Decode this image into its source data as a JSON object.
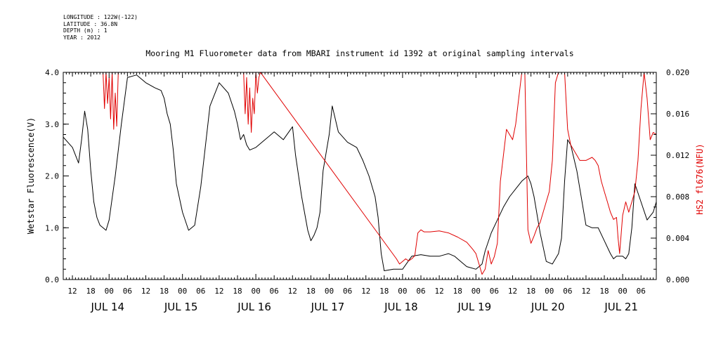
{
  "meta": {
    "longitude": "LONGITUDE : 122W(-122)",
    "latitude": "LATITUDE : 36.8N",
    "depth": "DEPTH (m) : 1",
    "year": "YEAR : 2012"
  },
  "chart_data": {
    "type": "line",
    "title": "Mooring M1 Fluorometer data from MBARI instrument id 1392 at original sampling intervals",
    "ylabel": "Wetstar Fluorescence(V)",
    "y2label": "HS2 fl676(NFU)",
    "xlim": [
      "2012-07-13 09:00",
      "2012-07-21 11:00"
    ],
    "ylim": [
      0,
      4
    ],
    "y2lim": [
      0,
      0.02
    ],
    "yticks": [
      "0.0",
      "1.0",
      "2.0",
      "3.0",
      "4.0"
    ],
    "y2ticks": [
      "0.000",
      "0.004",
      "0.008",
      "0.012",
      "0.016",
      "0.020"
    ],
    "xticks": [
      "12",
      "18",
      "00",
      "06",
      "12",
      "18",
      "00",
      "06",
      "12",
      "18",
      "00",
      "06",
      "12",
      "18",
      "00",
      "06",
      "12",
      "18",
      "00",
      "06",
      "12",
      "18",
      "00",
      "06",
      "12",
      "18",
      "00",
      "06",
      "12",
      "18",
      "00",
      "06"
    ],
    "date_labels": [
      "JUL 14",
      "JUL 15",
      "JUL 16",
      "JUL 17",
      "JUL 18",
      "JUL 19",
      "JUL 20",
      "JUL 21"
    ],
    "grid": false,
    "series": [
      {
        "name": "Wetstar Fluorescence(V)",
        "axis": "left",
        "color": "#000000",
        "x": [
          "2012-07-13 09:00",
          "2012-07-13 12:00",
          "2012-07-13 14:00",
          "2012-07-13 15:00",
          "2012-07-13 16:00",
          "2012-07-13 17:00",
          "2012-07-13 18:00",
          "2012-07-13 19:00",
          "2012-07-13 20:00",
          "2012-07-13 21:00",
          "2012-07-13 22:00",
          "2012-07-13 23:00",
          "2012-07-14 00:00",
          "2012-07-14 02:00",
          "2012-07-14 04:00",
          "2012-07-14 06:00",
          "2012-07-14 09:00",
          "2012-07-14 12:00",
          "2012-07-14 15:00",
          "2012-07-14 17:00",
          "2012-07-14 18:00",
          "2012-07-14 19:00",
          "2012-07-14 20:00",
          "2012-07-14 21:00",
          "2012-07-14 22:00",
          "2012-07-15 00:00",
          "2012-07-15 02:00",
          "2012-07-15 04:00",
          "2012-07-15 06:00",
          "2012-07-15 09:00",
          "2012-07-15 12:00",
          "2012-07-15 15:00",
          "2012-07-15 17:00",
          "2012-07-15 18:00",
          "2012-07-15 19:00",
          "2012-07-15 20:00",
          "2012-07-15 21:00",
          "2012-07-15 22:00",
          "2012-07-16 00:00",
          "2012-07-16 03:00",
          "2012-07-16 06:00",
          "2012-07-16 09:00",
          "2012-07-16 12:00",
          "2012-07-16 13:00",
          "2012-07-16 15:00",
          "2012-07-16 17:00",
          "2012-07-16 18:00",
          "2012-07-16 19:00",
          "2012-07-16 20:00",
          "2012-07-16 21:00",
          "2012-07-16 22:00",
          "2012-07-17 00:00",
          "2012-07-17 01:00",
          "2012-07-17 03:00",
          "2012-07-17 06:00",
          "2012-07-17 09:00",
          "2012-07-17 11:00",
          "2012-07-17 13:00",
          "2012-07-17 15:00",
          "2012-07-17 16:00",
          "2012-07-17 17:00",
          "2012-07-17 18:00",
          "2012-07-17 21:00",
          "2012-07-18 00:00",
          "2012-07-18 03:00",
          "2012-07-18 06:00",
          "2012-07-18 09:00",
          "2012-07-18 12:00",
          "2012-07-18 15:00",
          "2012-07-18 17:00",
          "2012-07-18 18:00",
          "2012-07-18 21:00",
          "2012-07-19 00:00",
          "2012-07-19 01:00",
          "2012-07-19 02:00",
          "2012-07-19 03:00",
          "2012-07-19 05:00",
          "2012-07-19 07:00",
          "2012-07-19 09:00",
          "2012-07-19 11:00",
          "2012-07-19 13:00",
          "2012-07-19 15:00",
          "2012-07-19 16:00",
          "2012-07-19 17:00",
          "2012-07-19 18:00",
          "2012-07-19 19:00",
          "2012-07-19 21:00",
          "2012-07-19 23:00",
          "2012-07-20 01:00",
          "2012-07-20 03:00",
          "2012-07-20 04:00",
          "2012-07-20 05:00",
          "2012-07-20 06:00",
          "2012-07-20 07:00",
          "2012-07-20 09:00",
          "2012-07-20 12:00",
          "2012-07-20 14:00",
          "2012-07-20 15:00",
          "2012-07-20 16:00",
          "2012-07-20 18:00",
          "2012-07-20 20:00",
          "2012-07-20 21:00",
          "2012-07-20 22:00",
          "2012-07-20 23:00",
          "2012-07-21 00:00",
          "2012-07-21 01:00",
          "2012-07-21 02:00",
          "2012-07-21 03:00",
          "2012-07-21 04:00",
          "2012-07-21 06:00",
          "2012-07-21 08:00",
          "2012-07-21 10:00",
          "2012-07-21 11:00"
        ],
        "values": [
          2.75,
          2.55,
          2.25,
          2.7,
          3.25,
          2.9,
          2.1,
          1.5,
          1.2,
          1.05,
          1.0,
          0.95,
          1.15,
          2.0,
          3.0,
          3.9,
          3.95,
          3.8,
          3.7,
          3.65,
          3.5,
          3.2,
          3.0,
          2.5,
          1.85,
          1.3,
          0.95,
          1.05,
          1.8,
          3.35,
          3.8,
          3.6,
          3.25,
          3.0,
          2.7,
          2.8,
          2.6,
          2.5,
          2.55,
          2.7,
          2.85,
          2.7,
          2.95,
          2.4,
          1.6,
          0.95,
          0.75,
          0.85,
          1.0,
          1.3,
          2.1,
          2.8,
          3.35,
          2.85,
          2.65,
          2.55,
          2.3,
          2.0,
          1.6,
          1.2,
          0.5,
          0.17,
          0.2,
          0.2,
          0.45,
          0.48,
          0.45,
          0.45,
          0.5,
          0.45,
          0.4,
          0.25,
          0.2,
          0.25,
          0.3,
          0.55,
          0.9,
          1.15,
          1.4,
          1.6,
          1.75,
          1.9,
          1.95,
          2.0,
          1.85,
          1.6,
          0.9,
          0.35,
          0.3,
          0.5,
          0.8,
          1.9,
          2.7,
          2.6,
          2.1,
          1.05,
          1.0,
          1.0,
          1.0,
          0.75,
          0.5,
          0.4,
          0.45,
          0.45,
          0.45,
          0.4,
          0.5,
          1.0,
          1.85,
          1.5,
          1.15,
          1.3,
          1.5
        ]
      },
      {
        "name": "HS2 fl676(NFU)",
        "axis": "right",
        "color": "#e00000",
        "x": [
          "2012-07-13 22:00",
          "2012-07-13 22:30",
          "2012-07-13 23:00",
          "2012-07-13 23:30",
          "2012-07-14 00:00",
          "2012-07-14 00:30",
          "2012-07-14 01:00",
          "2012-07-14 01:30",
          "2012-07-14 02:00",
          "2012-07-14 02:30",
          "2012-07-14 03:00",
          "2012-07-15 20:00",
          "2012-07-15 20:30",
          "2012-07-15 21:00",
          "2012-07-15 21:30",
          "2012-07-15 22:00",
          "2012-07-15 22:30",
          "2012-07-15 23:00",
          "2012-07-15 23:30",
          "2012-07-16 00:00",
          "2012-07-16 00:30",
          "2012-07-16 01:00",
          "2012-07-16 01:30",
          "2012-07-17 22:00",
          "2012-07-17 23:00",
          "2012-07-18 01:00",
          "2012-07-18 02:00",
          "2012-07-18 03:00",
          "2012-07-18 04:00",
          "2012-07-18 05:00",
          "2012-07-18 06:00",
          "2012-07-18 07:00",
          "2012-07-18 09:00",
          "2012-07-18 12:00",
          "2012-07-18 15:00",
          "2012-07-18 18:00",
          "2012-07-18 21:00",
          "2012-07-18 23:00",
          "2012-07-19 00:00",
          "2012-07-19 01:00",
          "2012-07-19 02:00",
          "2012-07-19 03:00",
          "2012-07-19 04:00",
          "2012-07-19 05:00",
          "2012-07-19 06:00",
          "2012-07-19 07:00",
          "2012-07-19 08:00",
          "2012-07-19 10:00",
          "2012-07-19 12:00",
          "2012-07-19 13:00",
          "2012-07-19 14:00",
          "2012-07-19 15:00",
          "2012-07-19 16:00",
          "2012-07-19 17:00",
          "2012-07-19 18:00",
          "2012-07-19 19:00",
          "2012-07-19 20:00",
          "2012-07-19 21:00",
          "2012-07-19 22:00",
          "2012-07-20 00:00",
          "2012-07-20 01:00",
          "2012-07-20 02:00",
          "2012-07-20 03:00",
          "2012-07-20 04:00",
          "2012-07-20 05:00",
          "2012-07-20 06:00",
          "2012-07-20 07:00",
          "2012-07-20 08:00",
          "2012-07-20 09:00",
          "2012-07-20 10:00",
          "2012-07-20 12:00",
          "2012-07-20 14:00",
          "2012-07-20 15:00",
          "2012-07-20 16:00",
          "2012-07-20 17:00",
          "2012-07-20 18:00",
          "2012-07-20 19:00",
          "2012-07-20 20:00",
          "2012-07-20 21:00",
          "2012-07-20 22:00",
          "2012-07-20 22:30",
          "2012-07-20 23:00",
          "2012-07-21 00:00",
          "2012-07-21 01:00",
          "2012-07-21 02:00",
          "2012-07-21 03:00",
          "2012-07-21 04:00",
          "2012-07-21 05:00",
          "2012-07-21 06:00",
          "2012-07-21 07:00",
          "2012-07-21 08:00",
          "2012-07-21 09:00",
          "2012-07-21 10:00",
          "2012-07-21 11:00"
        ],
        "values": [
          0.02,
          0.0165,
          0.02,
          0.017,
          0.0195,
          0.0155,
          0.02,
          0.0145,
          0.018,
          0.0148,
          0.02,
          0.02,
          0.016,
          0.0195,
          0.015,
          0.0185,
          0.0142,
          0.0175,
          0.016,
          0.02,
          0.018,
          0.0195,
          0.02,
          0.002,
          0.0015,
          0.002,
          0.0018,
          0.002,
          0.0023,
          0.0045,
          0.0048,
          0.0046,
          0.0046,
          0.0047,
          0.0045,
          0.0041,
          0.0036,
          0.0029,
          0.0025,
          0.0015,
          0.0005,
          0.001,
          0.0028,
          0.0015,
          0.0022,
          0.0035,
          0.0095,
          0.0145,
          0.0135,
          0.015,
          0.0175,
          0.02,
          0.02,
          0.0048,
          0.0035,
          0.0042,
          0.005,
          0.0055,
          0.0065,
          0.0085,
          0.0115,
          0.019,
          0.02,
          0.02,
          0.02,
          0.0145,
          0.013,
          0.0125,
          0.012,
          0.0115,
          0.0115,
          0.0118,
          0.0115,
          0.011,
          0.0095,
          0.0085,
          0.0075,
          0.0065,
          0.0058,
          0.006,
          0.004,
          0.0025,
          0.0062,
          0.0075,
          0.0065,
          0.0075,
          0.0085,
          0.0115,
          0.0165,
          0.02,
          0.0175,
          0.0135,
          0.0142,
          0.014
        ]
      }
    ]
  }
}
